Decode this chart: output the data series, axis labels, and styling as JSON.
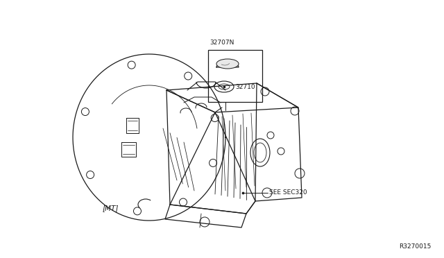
{
  "background_color": "#ffffff",
  "line_color": "#1a1a1a",
  "text_color": "#1a1a1a",
  "part_number_32707N": "32707N",
  "part_number_32710": "32710",
  "label_MT": "[MT]",
  "label_see": "SEE SEC320",
  "label_diagram_id": "R3270015",
  "fig_width": 6.4,
  "fig_height": 3.72,
  "dpi": 100
}
